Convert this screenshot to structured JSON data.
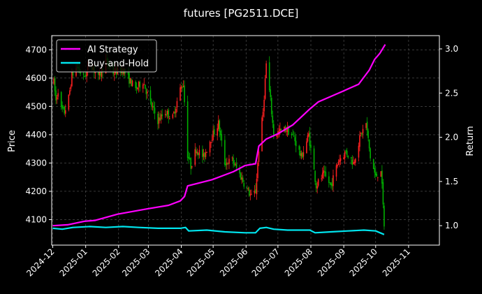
{
  "chart_data": {
    "type": "line",
    "title": "futures [PG2511.DCE]",
    "xlabel": "",
    "ylabel_left": "Price",
    "ylabel_right": "Return",
    "x_range": [
      "2024-11-30",
      "2025-11-30"
    ],
    "x_ticks": [
      "2024-12",
      "2025-01",
      "2025-02",
      "2025-03",
      "2025-04",
      "2025-05",
      "2025-06",
      "2025-07",
      "2025-08",
      "2025-09",
      "2025-10",
      "2025-11"
    ],
    "ylim_left": [
      4010,
      4750
    ],
    "yticks_left": [
      4100,
      4200,
      4300,
      4400,
      4500,
      4600,
      4700
    ],
    "ylim_right": [
      0.78,
      3.15
    ],
    "yticks_right": [
      1.0,
      1.5,
      2.0,
      2.5,
      3.0
    ],
    "yticks_right_labels": [
      "1.0",
      "1.5",
      "2.0",
      "2.5",
      "3.0"
    ],
    "grid": true,
    "legend_position": "top-left",
    "colors": {
      "background": "#000000",
      "ai_strategy": "#ff00ff",
      "buy_and_hold": "#00e5ee",
      "candle_up": "#ff2020",
      "candle_down": "#00b000",
      "grid": "#5a5a5a",
      "axis": "#ffffff"
    },
    "price_anchors": [
      [
        "2024-12-02",
        4585
      ],
      [
        "2024-12-04",
        4520
      ],
      [
        "2024-12-06",
        4560
      ],
      [
        "2024-12-09",
        4490
      ],
      [
        "2024-12-12",
        4480
      ],
      [
        "2024-12-16",
        4530
      ],
      [
        "2024-12-19",
        4610
      ],
      [
        "2024-12-24",
        4640
      ],
      [
        "2024-12-30",
        4600
      ],
      [
        "2025-01-06",
        4650
      ],
      [
        "2025-01-13",
        4600
      ],
      [
        "2025-01-20",
        4660
      ],
      [
        "2025-01-27",
        4620
      ],
      [
        "2025-02-05",
        4630
      ],
      [
        "2025-02-10",
        4600
      ],
      [
        "2025-02-17",
        4560
      ],
      [
        "2025-02-24",
        4590
      ],
      [
        "2025-03-03",
        4510
      ],
      [
        "2025-03-10",
        4450
      ],
      [
        "2025-03-17",
        4480
      ],
      [
        "2025-03-24",
        4460
      ],
      [
        "2025-03-31",
        4560
      ],
      [
        "2025-04-03",
        4580
      ],
      [
        "2025-04-07",
        4330
      ],
      [
        "2025-04-10",
        4290
      ],
      [
        "2025-04-15",
        4350
      ],
      [
        "2025-04-22",
        4320
      ],
      [
        "2025-04-28",
        4380
      ],
      [
        "2025-05-06",
        4440
      ],
      [
        "2025-05-12",
        4300
      ],
      [
        "2025-05-19",
        4310
      ],
      [
        "2025-05-26",
        4260
      ],
      [
        "2025-06-03",
        4200
      ],
      [
        "2025-06-06",
        4180
      ],
      [
        "2025-06-10",
        4200
      ],
      [
        "2025-06-13",
        4350
      ],
      [
        "2025-06-17",
        4480
      ],
      [
        "2025-06-20",
        4650
      ],
      [
        "2025-06-24",
        4520
      ],
      [
        "2025-06-27",
        4400
      ],
      [
        "2025-07-02",
        4410
      ],
      [
        "2025-07-09",
        4420
      ],
      [
        "2025-07-16",
        4390
      ],
      [
        "2025-07-23",
        4320
      ],
      [
        "2025-07-30",
        4400
      ],
      [
        "2025-08-06",
        4220
      ],
      [
        "2025-08-13",
        4260
      ],
      [
        "2025-08-20",
        4220
      ],
      [
        "2025-08-27",
        4310
      ],
      [
        "2025-09-03",
        4340
      ],
      [
        "2025-09-10",
        4300
      ],
      [
        "2025-09-17",
        4400
      ],
      [
        "2025-09-22",
        4440
      ],
      [
        "2025-09-26",
        4320
      ],
      [
        "2025-10-01",
        4250
      ],
      [
        "2025-10-06",
        4280
      ],
      [
        "2025-10-09",
        4080
      ]
    ],
    "series": [
      {
        "name": "AI Strategy",
        "axis": "right",
        "points": [
          [
            "2024-12-01",
            1.0
          ],
          [
            "2024-12-15",
            1.01
          ],
          [
            "2024-12-31",
            1.05
          ],
          [
            "2025-01-10",
            1.06
          ],
          [
            "2025-01-31",
            1.13
          ],
          [
            "2025-02-28",
            1.19
          ],
          [
            "2025-03-20",
            1.23
          ],
          [
            "2025-03-31",
            1.28
          ],
          [
            "2025-04-04",
            1.33
          ],
          [
            "2025-04-07",
            1.45
          ],
          [
            "2025-04-30",
            1.52
          ],
          [
            "2025-05-20",
            1.61
          ],
          [
            "2025-05-31",
            1.68
          ],
          [
            "2025-06-10",
            1.7
          ],
          [
            "2025-06-13",
            1.9
          ],
          [
            "2025-06-20",
            1.98
          ],
          [
            "2025-07-01",
            2.04
          ],
          [
            "2025-07-15",
            2.14
          ],
          [
            "2025-07-31",
            2.32
          ],
          [
            "2025-08-08",
            2.4
          ],
          [
            "2025-08-31",
            2.52
          ],
          [
            "2025-09-15",
            2.6
          ],
          [
            "2025-09-25",
            2.76
          ],
          [
            "2025-09-30",
            2.88
          ],
          [
            "2025-10-05",
            2.95
          ],
          [
            "2025-10-10",
            3.05
          ]
        ]
      },
      {
        "name": "Buy-and-Hold",
        "axis": "right",
        "points": [
          [
            "2024-12-01",
            0.97
          ],
          [
            "2024-12-10",
            0.96
          ],
          [
            "2024-12-20",
            0.98
          ],
          [
            "2025-01-05",
            0.99
          ],
          [
            "2025-01-20",
            0.98
          ],
          [
            "2025-02-05",
            0.99
          ],
          [
            "2025-02-20",
            0.98
          ],
          [
            "2025-03-10",
            0.97
          ],
          [
            "2025-03-31",
            0.97
          ],
          [
            "2025-04-05",
            0.98
          ],
          [
            "2025-04-08",
            0.94
          ],
          [
            "2025-04-25",
            0.95
          ],
          [
            "2025-05-12",
            0.93
          ],
          [
            "2025-05-31",
            0.92
          ],
          [
            "2025-06-10",
            0.92
          ],
          [
            "2025-06-14",
            0.97
          ],
          [
            "2025-06-20",
            0.98
          ],
          [
            "2025-06-27",
            0.96
          ],
          [
            "2025-07-10",
            0.95
          ],
          [
            "2025-07-31",
            0.95
          ],
          [
            "2025-08-05",
            0.92
          ],
          [
            "2025-08-20",
            0.93
          ],
          [
            "2025-09-05",
            0.94
          ],
          [
            "2025-09-20",
            0.95
          ],
          [
            "2025-10-01",
            0.94
          ],
          [
            "2025-10-09",
            0.9
          ]
        ]
      }
    ]
  }
}
